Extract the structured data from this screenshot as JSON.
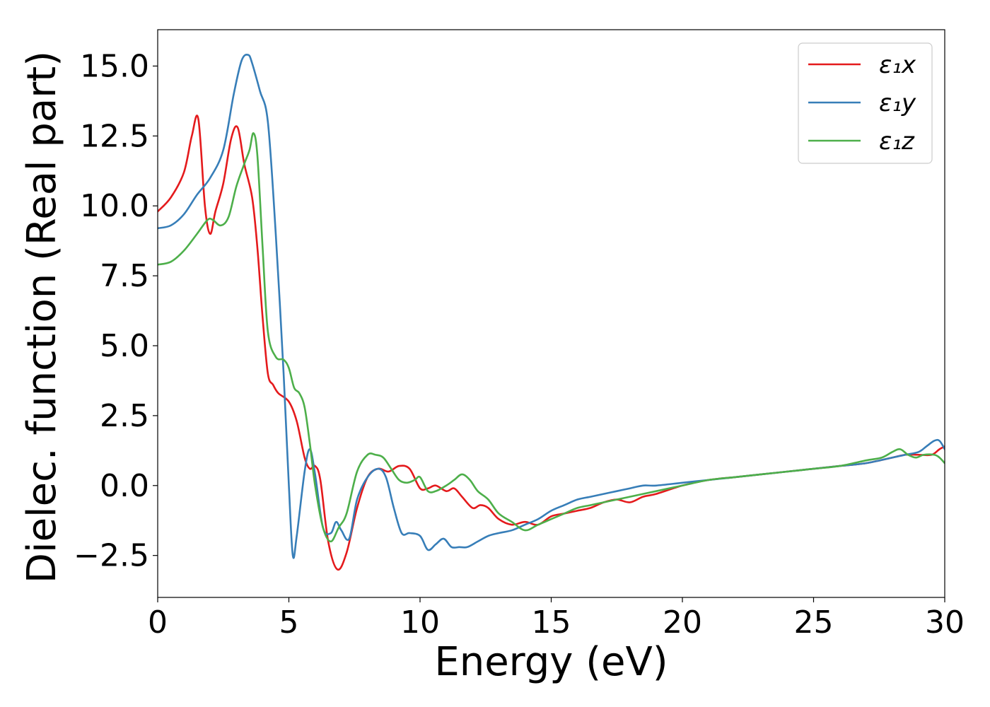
{
  "chart_data": {
    "type": "line",
    "xlabel": "Energy (eV)",
    "ylabel": "Dielec. function (Real part)",
    "xlim": [
      0,
      30
    ],
    "ylim": [
      -4.0,
      16.3
    ],
    "xticks": [
      0,
      5,
      10,
      15,
      20,
      25,
      30
    ],
    "xtick_labels": [
      "0",
      "5",
      "10",
      "15",
      "20",
      "25",
      "30"
    ],
    "yticks": [
      -2.5,
      0.0,
      2.5,
      5.0,
      7.5,
      10.0,
      12.5,
      15.0
    ],
    "ytick_labels": [
      "−2.5",
      "0.0",
      "2.5",
      "5.0",
      "7.5",
      "10.0",
      "12.5",
      "15.0"
    ],
    "grid": false,
    "legend_position": "top-right",
    "series": [
      {
        "name": "ε₁x",
        "color": "#e41a1c",
        "x": [
          0,
          0.5,
          1.0,
          1.3,
          1.55,
          1.8,
          2.0,
          2.2,
          2.5,
          2.8,
          3.05,
          3.3,
          3.6,
          3.8,
          4.0,
          4.2,
          4.4,
          4.6,
          5.0,
          5.3,
          5.6,
          5.8,
          6.0,
          6.2,
          6.5,
          6.85,
          7.2,
          7.6,
          8.0,
          8.4,
          8.8,
          9.2,
          9.6,
          10.0,
          10.3,
          10.6,
          11.0,
          11.3,
          11.6,
          12.0,
          12.3,
          12.6,
          13.0,
          13.5,
          14.0,
          14.5,
          15.0,
          15.5,
          16.0,
          16.5,
          17.0,
          17.5,
          18.0,
          18.5,
          19.0,
          20.0,
          21.0,
          22.0,
          23.0,
          24.0,
          25.0,
          26.0,
          27.0,
          28.0,
          28.5,
          29.0,
          29.5,
          29.8,
          30.0
        ],
        "y": [
          9.8,
          10.3,
          11.2,
          12.5,
          13.1,
          10.0,
          9.0,
          9.8,
          10.8,
          12.4,
          12.8,
          11.5,
          10.3,
          8.5,
          6.0,
          4.0,
          3.6,
          3.3,
          3.0,
          2.3,
          1.0,
          0.6,
          0.7,
          0.2,
          -2.0,
          -3.0,
          -2.4,
          -0.8,
          0.3,
          0.6,
          0.5,
          0.7,
          0.6,
          -0.1,
          -0.1,
          0.0,
          -0.2,
          -0.1,
          -0.4,
          -0.8,
          -0.7,
          -0.8,
          -1.2,
          -1.4,
          -1.3,
          -1.4,
          -1.1,
          -1.0,
          -0.9,
          -0.8,
          -0.6,
          -0.5,
          -0.6,
          -0.4,
          -0.3,
          0.0,
          0.2,
          0.3,
          0.4,
          0.5,
          0.6,
          0.7,
          0.8,
          1.0,
          1.1,
          1.1,
          1.1,
          1.3,
          1.4
        ]
      },
      {
        "name": "ε₁y",
        "color": "#377eb8",
        "x": [
          0,
          0.5,
          1.0,
          1.5,
          2.0,
          2.5,
          2.9,
          3.2,
          3.45,
          3.6,
          3.9,
          4.2,
          4.5,
          4.8,
          5.0,
          5.15,
          5.3,
          5.6,
          5.8,
          6.0,
          6.3,
          6.6,
          6.8,
          7.0,
          7.3,
          7.6,
          8.0,
          8.4,
          8.7,
          9.0,
          9.3,
          9.6,
          10.0,
          10.3,
          10.6,
          10.9,
          11.2,
          11.5,
          11.8,
          12.2,
          12.6,
          13.0,
          13.5,
          14.0,
          14.5,
          15.0,
          15.5,
          16.0,
          16.5,
          17.0,
          17.5,
          18.0,
          18.5,
          19.0,
          20.0,
          21.0,
          22.0,
          23.0,
          24.0,
          25.0,
          26.0,
          27.0,
          28.0,
          28.5,
          29.0,
          29.3,
          29.6,
          29.8,
          30.0
        ],
        "y": [
          9.2,
          9.3,
          9.7,
          10.4,
          11.0,
          12.0,
          14.0,
          15.2,
          15.4,
          15.1,
          14.1,
          13.0,
          9.0,
          4.0,
          0.0,
          -2.5,
          -1.8,
          0.5,
          1.3,
          0.4,
          -1.5,
          -1.7,
          -1.3,
          -1.6,
          -1.9,
          -0.5,
          0.3,
          0.6,
          0.3,
          -0.8,
          -1.7,
          -1.7,
          -1.8,
          -2.3,
          -2.1,
          -1.9,
          -2.2,
          -2.2,
          -2.2,
          -2.0,
          -1.8,
          -1.7,
          -1.6,
          -1.4,
          -1.2,
          -0.9,
          -0.7,
          -0.5,
          -0.4,
          -0.3,
          -0.2,
          -0.1,
          0.0,
          0.0,
          0.1,
          0.2,
          0.3,
          0.4,
          0.5,
          0.6,
          0.7,
          0.8,
          1.0,
          1.1,
          1.2,
          1.4,
          1.6,
          1.6,
          1.3
        ]
      },
      {
        "name": "ε₁z",
        "color": "#4daf4a",
        "x": [
          0,
          0.5,
          1.0,
          1.5,
          1.9,
          2.1,
          2.4,
          2.7,
          3.0,
          3.3,
          3.5,
          3.65,
          3.8,
          4.0,
          4.2,
          4.5,
          4.8,
          5.0,
          5.2,
          5.4,
          5.6,
          5.8,
          6.0,
          6.3,
          6.6,
          6.9,
          7.2,
          7.6,
          8.0,
          8.3,
          8.6,
          8.9,
          9.2,
          9.5,
          9.8,
          10.0,
          10.3,
          10.6,
          11.0,
          11.3,
          11.6,
          11.9,
          12.2,
          12.6,
          13.0,
          13.5,
          14.0,
          14.5,
          15.0,
          15.5,
          16.0,
          16.5,
          17.0,
          18.0,
          19.0,
          20.0,
          21.0,
          22.0,
          23.0,
          24.0,
          25.0,
          26.0,
          27.0,
          27.6,
          28.0,
          28.3,
          28.6,
          28.9,
          29.2,
          29.6,
          29.8,
          30.0
        ],
        "y": [
          7.9,
          8.0,
          8.4,
          9.0,
          9.5,
          9.5,
          9.3,
          9.6,
          10.7,
          11.5,
          12.0,
          12.6,
          11.8,
          8.5,
          5.5,
          4.6,
          4.5,
          4.2,
          3.5,
          3.3,
          2.8,
          1.5,
          0.0,
          -1.5,
          -2.0,
          -1.5,
          -1.0,
          0.5,
          1.1,
          1.1,
          1.0,
          0.6,
          0.2,
          0.1,
          0.2,
          0.3,
          -0.2,
          -0.2,
          0.0,
          0.2,
          0.4,
          0.2,
          -0.2,
          -0.5,
          -1.0,
          -1.3,
          -1.6,
          -1.4,
          -1.2,
          -1.0,
          -0.8,
          -0.7,
          -0.6,
          -0.4,
          -0.2,
          0.0,
          0.2,
          0.3,
          0.4,
          0.5,
          0.6,
          0.7,
          0.9,
          1.0,
          1.2,
          1.3,
          1.1,
          1.0,
          1.1,
          1.1,
          1.0,
          0.8
        ]
      }
    ]
  }
}
